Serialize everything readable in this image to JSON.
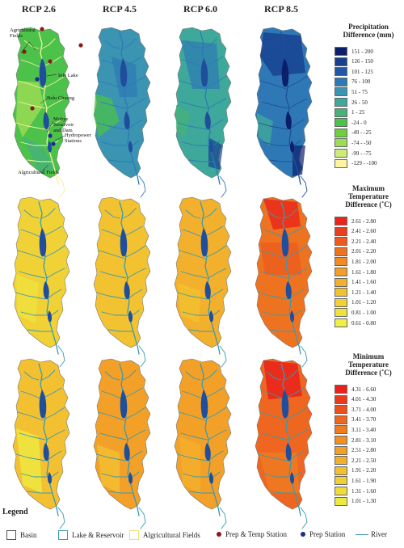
{
  "columns": [
    "RCP 2.6",
    "RCP 4.5",
    "RCP 6.0",
    "RCP 8.5"
  ],
  "legends": [
    {
      "title": [
        "Precipitation",
        "Difference (mm)"
      ],
      "classes": [
        {
          "label": "151 -  200",
          "color": "#0b1f6b"
        },
        {
          "label": "126 -  150",
          "color": "#173f8f"
        },
        {
          "label": "101 -  125",
          "color": "#2257a7"
        },
        {
          "label": "76 -  100",
          "color": "#2e79b5"
        },
        {
          "label": "51 -   75",
          "color": "#3a94b2"
        },
        {
          "label": "26 -   50",
          "color": "#3ea89a"
        },
        {
          "label": "1 -   25",
          "color": "#46b27a"
        },
        {
          "label": "-24 -    0",
          "color": "#4cc24a"
        },
        {
          "label": "-49 -  -25",
          "color": "#6fd03e"
        },
        {
          "label": "-74 -  -50",
          "color": "#9ddc55"
        },
        {
          "label": "-99 -  -75",
          "color": "#cdec7a"
        },
        {
          "label": "-129 - -100",
          "color": "#fdf3a0"
        }
      ]
    },
    {
      "title": [
        "Maximum",
        "Temperature",
        "Difference (˚C)"
      ],
      "classes": [
        {
          "label": "2.61 - 2.80",
          "color": "#e8251c"
        },
        {
          "label": "2.41 - 2.60",
          "color": "#ea3f1d"
        },
        {
          "label": "2.21 - 2.40",
          "color": "#ec5a1f"
        },
        {
          "label": "2.01 - 2.20",
          "color": "#ee7321"
        },
        {
          "label": "1.81 - 2.00",
          "color": "#f08a24"
        },
        {
          "label": "1.61 - 1.80",
          "color": "#f29e28"
        },
        {
          "label": "1.41 - 1.60",
          "color": "#f3b02c"
        },
        {
          "label": "1.21 - 1.40",
          "color": "#f3c230"
        },
        {
          "label": "1.01 - 1.20",
          "color": "#f1d236"
        },
        {
          "label": "0.81 - 1.00",
          "color": "#efe13e"
        },
        {
          "label": "0.61 - 0.80",
          "color": "#eef047"
        }
      ]
    },
    {
      "title": [
        "Minimum",
        "Temperature",
        "Difference (˚C)"
      ],
      "classes": [
        {
          "label": "4.31 - 6.60",
          "color": "#e8221b"
        },
        {
          "label": "4.01 - 4.30",
          "color": "#ea391c"
        },
        {
          "label": "3.71 - 4.00",
          "color": "#ec501e"
        },
        {
          "label": "3.41 - 3.70",
          "color": "#ee6620"
        },
        {
          "label": "3.11 - 3.40",
          "color": "#f07c22"
        },
        {
          "label": "2.81 - 3.10",
          "color": "#f18f25"
        },
        {
          "label": "2.51 - 2.80",
          "color": "#f2a028"
        },
        {
          "label": "2.21 - 2.50",
          "color": "#f3b02c"
        },
        {
          "label": "1.91 - 2.20",
          "color": "#f3c031"
        },
        {
          "label": "1.61 - 1.90",
          "color": "#f2ce36"
        },
        {
          "label": "1.31 - 1.60",
          "color": "#f0dc3c"
        },
        {
          "label": "1.01 - 1.30",
          "color": "#eeea44"
        }
      ]
    }
  ],
  "annotations": {
    "agricultural_fields_top": [
      "Agricultural",
      "Fields"
    ],
    "inle_lake": "Inle Lake",
    "belu_chaung": "Belu Chaung",
    "mobye": [
      "Mobye",
      "Reservoir",
      "and Dam"
    ],
    "hydropower": [
      "Hydropower",
      "Stations"
    ],
    "agricultural_fields_bottom": "Algricultural Fields"
  },
  "legend": {
    "title": "Legend",
    "items": [
      {
        "label": "Basin",
        "symbol": "basin-box"
      },
      {
        "label": "Lake & Reservoir",
        "symbol": "lake-box"
      },
      {
        "label": "Algricultural Fields",
        "symbol": "field-box"
      },
      {
        "label": "Prep & Temp Station",
        "symbol": "red-dot"
      },
      {
        "label": "Prep Station",
        "symbol": "blue-dot"
      },
      {
        "label": "River",
        "symbol": "river-line"
      }
    ]
  },
  "colors": {
    "river": "#3a9ab0",
    "lake": "#1f4e9c",
    "basin_outline": "#777777",
    "field_outline": "#f2f2a0",
    "prep_temp_station": "#8b1a1a",
    "prep_station": "#1a2e8b"
  }
}
